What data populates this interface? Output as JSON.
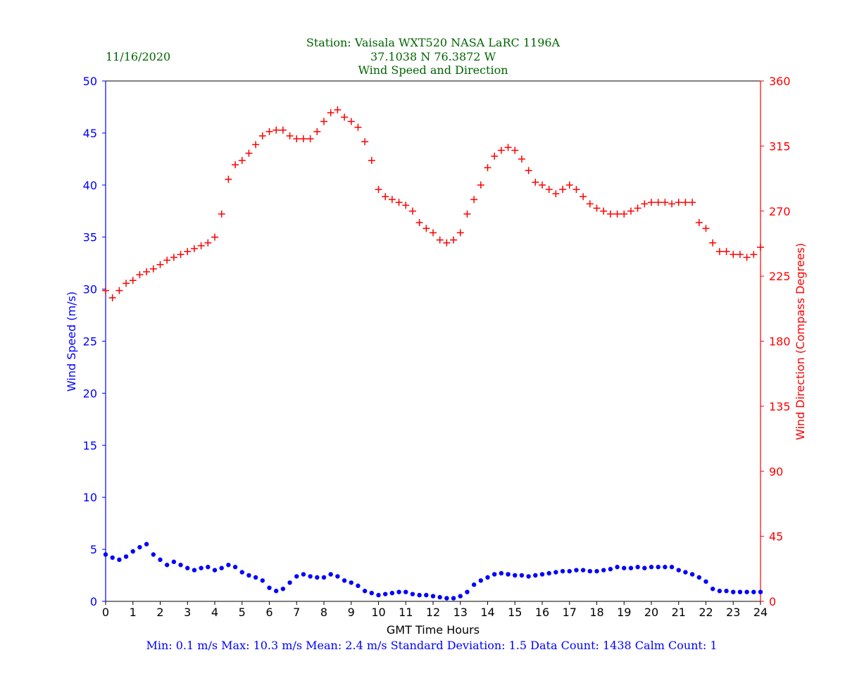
{
  "header": {
    "date": "11/16/2020",
    "station_line": "Station:  Vaisala WXT520  NASA LaRC 1196A",
    "coords_line": "37.1038 N 76.3872 W",
    "title_line": "Wind Speed and Direction"
  },
  "footer": {
    "stats_line": "Min: 0.1 m/s   Max: 10.3 m/s   Mean: 2.4 m/s  Standard Deviation: 1.5  Data Count: 1438  Calm Count:  1"
  },
  "colors": {
    "speed": "#0000ff",
    "direction": "#ff0000",
    "header_text": "#006400",
    "footer_text": "#0000ff"
  },
  "chart_data": {
    "type": "scatter",
    "xlabel": "GMT Time Hours",
    "ylabel_left": "Wind Speed (m/s)",
    "ylabel_right": "Wind Direction (Compass Degrees)",
    "xlim": [
      0,
      24
    ],
    "ylim_left": [
      0,
      50
    ],
    "ylim_right": [
      0,
      360
    ],
    "x_ticks": [
      0,
      1,
      2,
      3,
      4,
      5,
      6,
      7,
      8,
      9,
      10,
      11,
      12,
      13,
      14,
      15,
      16,
      17,
      18,
      19,
      20,
      21,
      22,
      23,
      24
    ],
    "y_ticks_left": [
      0,
      5,
      10,
      15,
      20,
      25,
      30,
      35,
      40,
      45,
      50
    ],
    "y_ticks_right": [
      0,
      45,
      90,
      135,
      180,
      225,
      270,
      315,
      360
    ],
    "series": [
      {
        "name": "Wind Speed",
        "marker": "dot",
        "axis": "left",
        "x": [
          0.0,
          0.25,
          0.5,
          0.75,
          1.0,
          1.25,
          1.5,
          1.75,
          2.0,
          2.25,
          2.5,
          2.75,
          3.0,
          3.25,
          3.5,
          3.75,
          4.0,
          4.25,
          4.5,
          4.75,
          5.0,
          5.25,
          5.5,
          5.75,
          6.0,
          6.25,
          6.5,
          6.75,
          7.0,
          7.25,
          7.5,
          7.75,
          8.0,
          8.25,
          8.5,
          8.75,
          9.0,
          9.25,
          9.5,
          9.75,
          10.0,
          10.25,
          10.5,
          10.75,
          11.0,
          11.25,
          11.5,
          11.75,
          12.0,
          12.25,
          12.5,
          12.75,
          13.0,
          13.25,
          13.5,
          13.75,
          14.0,
          14.25,
          14.5,
          14.75,
          15.0,
          15.25,
          15.5,
          15.75,
          16.0,
          16.25,
          16.5,
          16.75,
          17.0,
          17.25,
          17.5,
          17.75,
          18.0,
          18.25,
          18.5,
          18.75,
          19.0,
          19.25,
          19.5,
          19.75,
          20.0,
          20.25,
          20.5,
          20.75,
          21.0,
          21.25,
          21.5,
          21.75,
          22.0,
          22.25,
          22.5,
          22.75,
          23.0,
          23.25,
          23.5,
          23.75,
          24.0
        ],
        "y": [
          4.5,
          4.2,
          4.0,
          4.3,
          4.8,
          5.2,
          5.5,
          4.5,
          4.0,
          3.5,
          3.8,
          3.5,
          3.2,
          3.0,
          3.2,
          3.3,
          3.0,
          3.2,
          3.5,
          3.3,
          2.8,
          2.5,
          2.3,
          2.0,
          1.3,
          1.0,
          1.2,
          1.8,
          2.4,
          2.6,
          2.4,
          2.3,
          2.3,
          2.6,
          2.4,
          2.0,
          1.8,
          1.5,
          1.0,
          0.8,
          0.6,
          0.7,
          0.8,
          0.9,
          0.9,
          0.7,
          0.6,
          0.6,
          0.5,
          0.4,
          0.3,
          0.3,
          0.5,
          0.9,
          1.6,
          2.0,
          2.3,
          2.6,
          2.7,
          2.6,
          2.5,
          2.5,
          2.4,
          2.5,
          2.6,
          2.7,
          2.8,
          2.9,
          2.9,
          3.0,
          3.0,
          2.9,
          2.9,
          3.0,
          3.1,
          3.3,
          3.2,
          3.2,
          3.3,
          3.2,
          3.3,
          3.3,
          3.3,
          3.3,
          3.0,
          2.8,
          2.6,
          2.3,
          1.9,
          1.2,
          1.0,
          1.0,
          0.9,
          0.9,
          0.9,
          0.9,
          0.9
        ]
      },
      {
        "name": "Wind Direction",
        "marker": "plus",
        "axis": "right",
        "x": [
          0.0,
          0.25,
          0.5,
          0.75,
          1.0,
          1.25,
          1.5,
          1.75,
          2.0,
          2.25,
          2.5,
          2.75,
          3.0,
          3.25,
          3.5,
          3.75,
          4.0,
          4.25,
          4.5,
          4.75,
          5.0,
          5.25,
          5.5,
          5.75,
          6.0,
          6.25,
          6.5,
          6.75,
          7.0,
          7.25,
          7.5,
          7.75,
          8.0,
          8.25,
          8.5,
          8.75,
          9.0,
          9.25,
          9.5,
          9.75,
          10.0,
          10.25,
          10.5,
          10.75,
          11.0,
          11.25,
          11.5,
          11.75,
          12.0,
          12.25,
          12.5,
          12.75,
          13.0,
          13.25,
          13.5,
          13.75,
          14.0,
          14.25,
          14.5,
          14.75,
          15.0,
          15.25,
          15.5,
          15.75,
          16.0,
          16.25,
          16.5,
          16.75,
          17.0,
          17.25,
          17.5,
          17.75,
          18.0,
          18.25,
          18.5,
          18.75,
          19.0,
          19.25,
          19.5,
          19.75,
          20.0,
          20.25,
          20.5,
          20.75,
          21.0,
          21.25,
          21.5,
          21.75,
          22.0,
          22.25,
          22.5,
          22.75,
          23.0,
          23.25,
          23.5,
          23.75,
          24.0
        ],
        "y": [
          215,
          210,
          215,
          220,
          222,
          226,
          228,
          230,
          233,
          236,
          238,
          240,
          242,
          244,
          246,
          248,
          252,
          268,
          292,
          302,
          305,
          310,
          316,
          322,
          325,
          326,
          326,
          322,
          320,
          320,
          320,
          325,
          332,
          338,
          340,
          335,
          332,
          328,
          318,
          305,
          285,
          280,
          278,
          276,
          274,
          270,
          262,
          258,
          255,
          250,
          248,
          250,
          255,
          268,
          278,
          288,
          300,
          308,
          312,
          314,
          312,
          306,
          298,
          290,
          288,
          285,
          282,
          285,
          288,
          285,
          280,
          275,
          272,
          270,
          268,
          268,
          268,
          270,
          272,
          275,
          276,
          276,
          276,
          275,
          276,
          276,
          276,
          262,
          258,
          248,
          242,
          242,
          240,
          240,
          238,
          240,
          245
        ]
      }
    ]
  }
}
